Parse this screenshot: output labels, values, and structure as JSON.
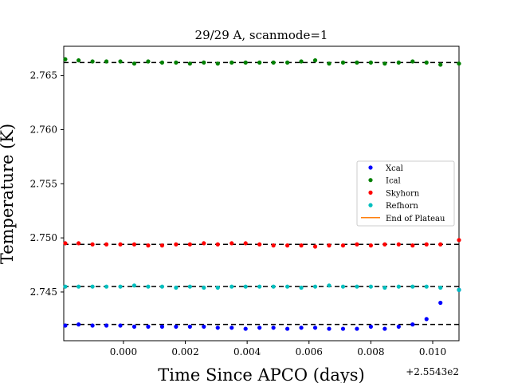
{
  "chart_data": {
    "type": "scatter",
    "title": "29/29 A, scanmode=1",
    "xlabel": "Time Since APCO (days)",
    "ylabel": "Temperature (K)",
    "x_offset_label": "+2.5543e2",
    "xlim": [
      -0.00193,
      0.01085
    ],
    "ylim": [
      2.7405,
      2.7677
    ],
    "xticks": [
      0.0,
      0.002,
      0.004,
      0.006,
      0.008,
      0.01
    ],
    "xtick_labels": [
      "0.000",
      "0.002",
      "0.004",
      "0.006",
      "0.008",
      "0.010"
    ],
    "yticks": [
      2.745,
      2.75,
      2.755,
      2.76,
      2.765
    ],
    "ytick_labels": [
      "2.745",
      "2.750",
      "2.755",
      "2.760",
      "2.765"
    ],
    "x": [
      -0.00188,
      -0.00145,
      -0.001,
      -0.00055,
      -0.0001,
      0.00035,
      0.0008,
      0.00125,
      0.0017,
      0.00215,
      0.0026,
      0.00305,
      0.0035,
      0.00395,
      0.0044,
      0.00485,
      0.0053,
      0.00575,
      0.0062,
      0.00665,
      0.0071,
      0.00755,
      0.008,
      0.00845,
      0.0089,
      0.00935,
      0.0098,
      0.01025,
      0.01085
    ],
    "series": [
      {
        "name": "Xcal",
        "color": "#0000ff",
        "plateau": 2.742,
        "values": [
          2.7419,
          2.742,
          2.7419,
          2.7419,
          2.7419,
          2.7418,
          2.7418,
          2.7418,
          2.7418,
          2.7418,
          2.7418,
          2.7417,
          2.7417,
          2.7416,
          2.7417,
          2.7417,
          2.7416,
          2.7417,
          2.7417,
          2.7416,
          2.7416,
          2.7416,
          2.7418,
          2.7416,
          2.7418,
          2.742,
          2.7425,
          2.744,
          2.7452
        ]
      },
      {
        "name": "Ical",
        "color": "#008000",
        "plateau": 2.7662,
        "values": [
          2.7665,
          2.7664,
          2.7663,
          2.7663,
          2.7663,
          2.7661,
          2.7663,
          2.7662,
          2.7662,
          2.7661,
          2.7662,
          2.7661,
          2.7662,
          2.7662,
          2.7662,
          2.7662,
          2.7662,
          2.7663,
          2.7664,
          2.7661,
          2.7662,
          2.7662,
          2.7662,
          2.7661,
          2.7662,
          2.7663,
          2.7662,
          2.766,
          2.7661
        ]
      },
      {
        "name": "Skyhorn",
        "color": "#ff0000",
        "plateau": 2.7494,
        "values": [
          2.7495,
          2.7495,
          2.7494,
          2.7494,
          2.7494,
          2.7494,
          2.7493,
          2.7493,
          2.7494,
          2.7494,
          2.7495,
          2.7494,
          2.7495,
          2.7495,
          2.7494,
          2.7493,
          2.7493,
          2.7493,
          2.7492,
          2.7493,
          2.7493,
          2.7494,
          2.7493,
          2.7494,
          2.7494,
          2.7493,
          2.7494,
          2.7494,
          2.7498
        ]
      },
      {
        "name": "Refhorn",
        "color": "#00bfbf",
        "plateau": 2.7455,
        "values": [
          2.7455,
          2.7455,
          2.7455,
          2.7455,
          2.7455,
          2.7456,
          2.7455,
          2.7455,
          2.7454,
          2.7455,
          2.7454,
          2.7454,
          2.7455,
          2.7455,
          2.7455,
          2.7455,
          2.7455,
          2.7454,
          2.7455,
          2.7456,
          2.7455,
          2.7455,
          2.7455,
          2.7454,
          2.7455,
          2.7455,
          2.7455,
          2.7454,
          2.7452
        ]
      },
      {
        "name": "End of Plateau",
        "color": "#ff7f0e",
        "values": []
      }
    ],
    "plateau_line_color": "#000000",
    "legend_position": "center-right",
    "grid": false
  }
}
